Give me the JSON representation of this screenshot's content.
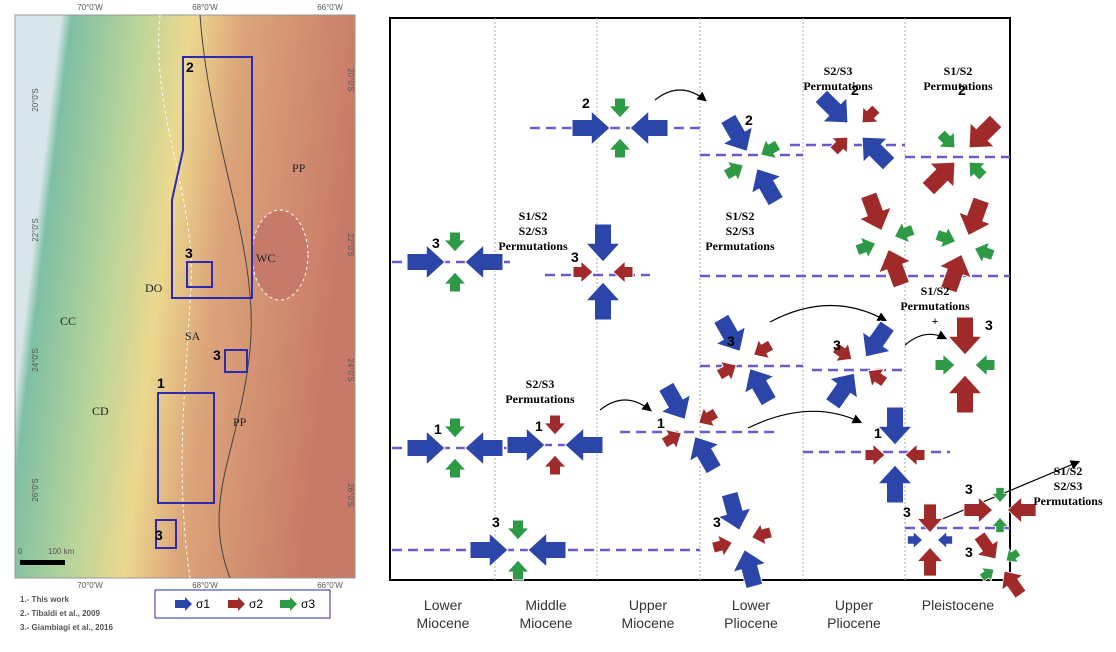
{
  "map": {
    "top_labels": [
      "70°0'W",
      "68°0'W",
      "66°0'W"
    ],
    "bottom_labels": [
      "70°0'W",
      "68°0'W",
      "66°0'W"
    ],
    "left_labels": [
      "20°0'S",
      "22°0'S",
      "24°0'S",
      "26°0'S"
    ],
    "right_labels": [
      "20°0'S",
      "22°0'S",
      "24°0'S",
      "26°0'S"
    ],
    "regions": [
      "PP",
      "WC",
      "CC",
      "DO",
      "SA",
      "CD",
      "PP"
    ],
    "box_labels": [
      "2",
      "3",
      "3",
      "1",
      "3"
    ],
    "scale": [
      "0",
      "100 km"
    ]
  },
  "references": [
    "1.- This work",
    "2.- Tibaldi et al., 2009",
    "3.- Giambiagi et al., 2016"
  ],
  "legend": [
    "σ1",
    "σ2",
    "σ3"
  ],
  "diagram": {
    "columns": [
      [
        "Lower",
        "Miocene"
      ],
      [
        "Middle",
        "Miocene"
      ],
      [
        "Upper",
        "Miocene"
      ],
      [
        "Lower",
        "Pliocene"
      ],
      [
        "Upper",
        "Pliocene"
      ],
      [
        "Pleistocene"
      ]
    ],
    "annotations": [
      [
        "S2/S3",
        "Permutations"
      ],
      [
        "S1/S2",
        "Permutations"
      ],
      [
        "S1/S2",
        "S2/S3",
        "Permutations"
      ],
      [
        "S1/S2",
        "S2/S3",
        "Permutations"
      ],
      [
        "S1/S2",
        "Permutations",
        "+"
      ],
      [
        "S2/S3",
        "Permutations"
      ],
      [
        "S1/S2",
        "S2/S3",
        "Permutations"
      ]
    ],
    "symbol_labels": [
      "2",
      "2",
      "2",
      "2",
      "3",
      "3",
      "3",
      "3",
      "3",
      "1",
      "1",
      "1",
      "1",
      "3",
      "3",
      "3",
      "3",
      "3"
    ]
  }
}
